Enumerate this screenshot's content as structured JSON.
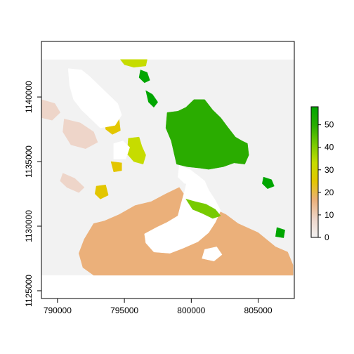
{
  "chart_data": {
    "type": "raster",
    "title": "",
    "xlabel": "",
    "ylabel": "",
    "xlim": [
      788800,
      807700
    ],
    "ylim": [
      1124400,
      1144300
    ],
    "x_ticks": [
      790000,
      795000,
      800000,
      805000
    ],
    "y_ticks": [
      1125000,
      1130000,
      1135000,
      1140000
    ],
    "x_tick_labels": [
      "790000",
      "795000",
      "800000",
      "805000"
    ],
    "y_tick_labels": [
      "1125000",
      "1130000",
      "1135000",
      "1140000"
    ],
    "raster_extent": {
      "x": [
        788800,
        807700
      ],
      "y": [
        1126200,
        1142900
      ]
    },
    "no_data_color": "#f2f2f2",
    "legend": {
      "position": "right",
      "range": [
        0,
        58
      ],
      "ticks": [
        0,
        10,
        20,
        30,
        40,
        50
      ],
      "tick_labels": [
        "0",
        "10",
        "20",
        "30",
        "40",
        "50"
      ],
      "colors": [
        "#f2f2f2",
        "#eed5c9",
        "#ebb07a",
        "#e3c600",
        "#c6dc00",
        "#77ca00",
        "#2aac00",
        "#00a600"
      ]
    },
    "patches": [
      {
        "value": 22,
        "color": "#ebb07a",
        "points": [
          [
            792700,
            1130200
          ],
          [
            793500,
            1130400
          ],
          [
            794600,
            1130900
          ],
          [
            795800,
            1131600
          ],
          [
            797000,
            1131900
          ],
          [
            798100,
            1132500
          ],
          [
            799100,
            1133000
          ],
          [
            799500,
            1132400
          ],
          [
            800000,
            1131900
          ],
          [
            801000,
            1131700
          ],
          [
            801800,
            1131300
          ],
          [
            802600,
            1130900
          ],
          [
            803500,
            1130200
          ],
          [
            805000,
            1129500
          ],
          [
            806300,
            1128400
          ],
          [
            807200,
            1128000
          ],
          [
            807600,
            1127000
          ],
          [
            807600,
            1126200
          ],
          [
            792700,
            1126200
          ],
          [
            791900,
            1126800
          ],
          [
            791600,
            1127900
          ],
          [
            792000,
            1129000
          ]
        ]
      },
      {
        "value": 0,
        "color": "#ffffff",
        "points": [
          [
            796500,
            1129400
          ],
          [
            797400,
            1129900
          ],
          [
            798200,
            1130300
          ],
          [
            799000,
            1130800
          ],
          [
            799200,
            1131600
          ],
          [
            799500,
            1132700
          ],
          [
            799700,
            1133600
          ],
          [
            800400,
            1134000
          ],
          [
            801000,
            1133500
          ],
          [
            801300,
            1132800
          ],
          [
            801800,
            1132000
          ],
          [
            802200,
            1131200
          ],
          [
            801800,
            1130300
          ],
          [
            801300,
            1129500
          ],
          [
            800500,
            1128800
          ],
          [
            799400,
            1128300
          ],
          [
            798400,
            1127900
          ],
          [
            797200,
            1128000
          ],
          [
            796600,
            1128700
          ]
        ]
      },
      {
        "value": 0,
        "color": "#ffffff",
        "points": [
          [
            800800,
            1127500
          ],
          [
            801700,
            1127300
          ],
          [
            802300,
            1127800
          ],
          [
            801900,
            1128400
          ],
          [
            801000,
            1128200
          ]
        ]
      },
      {
        "value": 53,
        "color": "#2aac00",
        "points": [
          [
            798200,
            1138800
          ],
          [
            799000,
            1138900
          ],
          [
            799600,
            1139200
          ],
          [
            800200,
            1139800
          ],
          [
            801000,
            1139800
          ],
          [
            801600,
            1139000
          ],
          [
            802200,
            1138400
          ],
          [
            802700,
            1137700
          ],
          [
            803300,
            1136900
          ],
          [
            803800,
            1136600
          ],
          [
            804200,
            1136400
          ],
          [
            804300,
            1135500
          ],
          [
            804000,
            1134800
          ],
          [
            803200,
            1134900
          ],
          [
            802400,
            1134600
          ],
          [
            801300,
            1134400
          ],
          [
            800600,
            1134500
          ],
          [
            799700,
            1134600
          ],
          [
            798900,
            1134800
          ],
          [
            798700,
            1135700
          ],
          [
            798500,
            1136600
          ],
          [
            798100,
            1137600
          ]
        ]
      },
      {
        "value": 0,
        "color": "#ffffff",
        "points": [
          [
            799100,
            1134700
          ],
          [
            799900,
            1134400
          ],
          [
            800500,
            1133900
          ],
          [
            800200,
            1133300
          ],
          [
            799500,
            1133300
          ],
          [
            799000,
            1133800
          ]
        ]
      },
      {
        "value": 45,
        "color": "#77ca00",
        "points": [
          [
            799600,
            1132100
          ],
          [
            800300,
            1131900
          ],
          [
            801100,
            1131700
          ],
          [
            801800,
            1131300
          ],
          [
            802200,
            1130800
          ],
          [
            801600,
            1130600
          ],
          [
            800800,
            1131000
          ],
          [
            800100,
            1131300
          ]
        ]
      },
      {
        "value": 55,
        "color": "#00a600",
        "points": [
          [
            796600,
            1140500
          ],
          [
            797100,
            1140200
          ],
          [
            797500,
            1139600
          ],
          [
            797200,
            1139200
          ],
          [
            796800,
            1139600
          ]
        ]
      },
      {
        "value": 57,
        "color": "#00a600",
        "points": [
          [
            796200,
            1142100
          ],
          [
            796700,
            1141900
          ],
          [
            796900,
            1141300
          ],
          [
            796500,
            1141100
          ],
          [
            796100,
            1141500
          ]
        ]
      },
      {
        "value": 40,
        "color": "#c6dc00",
        "points": [
          [
            794700,
            1142900
          ],
          [
            796700,
            1142900
          ],
          [
            796600,
            1142400
          ],
          [
            795700,
            1142300
          ],
          [
            795000,
            1142500
          ]
        ]
      },
      {
        "value": 40,
        "color": "#c6dc00",
        "points": [
          [
            795300,
            1136800
          ],
          [
            796100,
            1136900
          ],
          [
            796300,
            1136200
          ],
          [
            796600,
            1135500
          ],
          [
            796400,
            1134800
          ],
          [
            795700,
            1135000
          ],
          [
            795200,
            1135600
          ]
        ]
      },
      {
        "value": 55,
        "color": "#00a600",
        "points": [
          [
            805400,
            1133800
          ],
          [
            806000,
            1133600
          ],
          [
            806200,
            1133100
          ],
          [
            805700,
            1132900
          ],
          [
            805300,
            1133300
          ]
        ]
      },
      {
        "value": 55,
        "color": "#00a600",
        "points": [
          [
            806400,
            1129900
          ],
          [
            807000,
            1129700
          ],
          [
            806900,
            1129100
          ],
          [
            806300,
            1129200
          ]
        ]
      },
      {
        "value": 30,
        "color": "#e3c600",
        "points": [
          [
            793600,
            1138300
          ],
          [
            794600,
            1138300
          ],
          [
            794700,
            1137400
          ],
          [
            794100,
            1137100
          ],
          [
            793600,
            1137500
          ]
        ]
      },
      {
        "value": 30,
        "color": "#e3c600",
        "points": [
          [
            794000,
            1135000
          ],
          [
            794800,
            1134900
          ],
          [
            794800,
            1134300
          ],
          [
            794200,
            1134200
          ]
        ]
      },
      {
        "value": 28,
        "color": "#e3c600",
        "points": [
          [
            792900,
            1133100
          ],
          [
            793600,
            1133200
          ],
          [
            793800,
            1132400
          ],
          [
            793200,
            1132100
          ],
          [
            792800,
            1132500
          ]
        ]
      },
      {
        "value": 15,
        "color": "#eed5c9",
        "points": [
          [
            790500,
            1138300
          ],
          [
            791700,
            1138000
          ],
          [
            792700,
            1137300
          ],
          [
            793000,
            1136500
          ],
          [
            792100,
            1136000
          ],
          [
            791000,
            1136300
          ],
          [
            790400,
            1137300
          ]
        ]
      },
      {
        "value": 15,
        "color": "#eed5c9",
        "points": [
          [
            790400,
            1134100
          ],
          [
            791300,
            1133700
          ],
          [
            792000,
            1133000
          ],
          [
            791600,
            1132600
          ],
          [
            790700,
            1133000
          ],
          [
            790200,
            1133500
          ]
        ]
      },
      {
        "value": 12,
        "color": "#eed5c9",
        "points": [
          [
            788800,
            1139800
          ],
          [
            789800,
            1139500
          ],
          [
            790200,
            1138800
          ],
          [
            789600,
            1138200
          ],
          [
            788800,
            1138400
          ]
        ]
      },
      {
        "value": 0,
        "color": "#ffffff",
        "points": [
          [
            790800,
            1142200
          ],
          [
            791800,
            1142100
          ],
          [
            792400,
            1141600
          ],
          [
            793200,
            1140800
          ],
          [
            793900,
            1140100
          ],
          [
            794500,
            1139500
          ],
          [
            794800,
            1138600
          ],
          [
            794300,
            1137800
          ],
          [
            793200,
            1137600
          ],
          [
            792600,
            1138200
          ],
          [
            791800,
            1139000
          ],
          [
            791200,
            1139800
          ],
          [
            790900,
            1140900
          ]
        ]
      },
      {
        "value": 0,
        "color": "#ffffff",
        "points": [
          [
            794200,
            1135200
          ],
          [
            795100,
            1135200
          ],
          [
            795400,
            1136100
          ],
          [
            794900,
            1136600
          ],
          [
            794200,
            1136400
          ]
        ]
      }
    ]
  }
}
